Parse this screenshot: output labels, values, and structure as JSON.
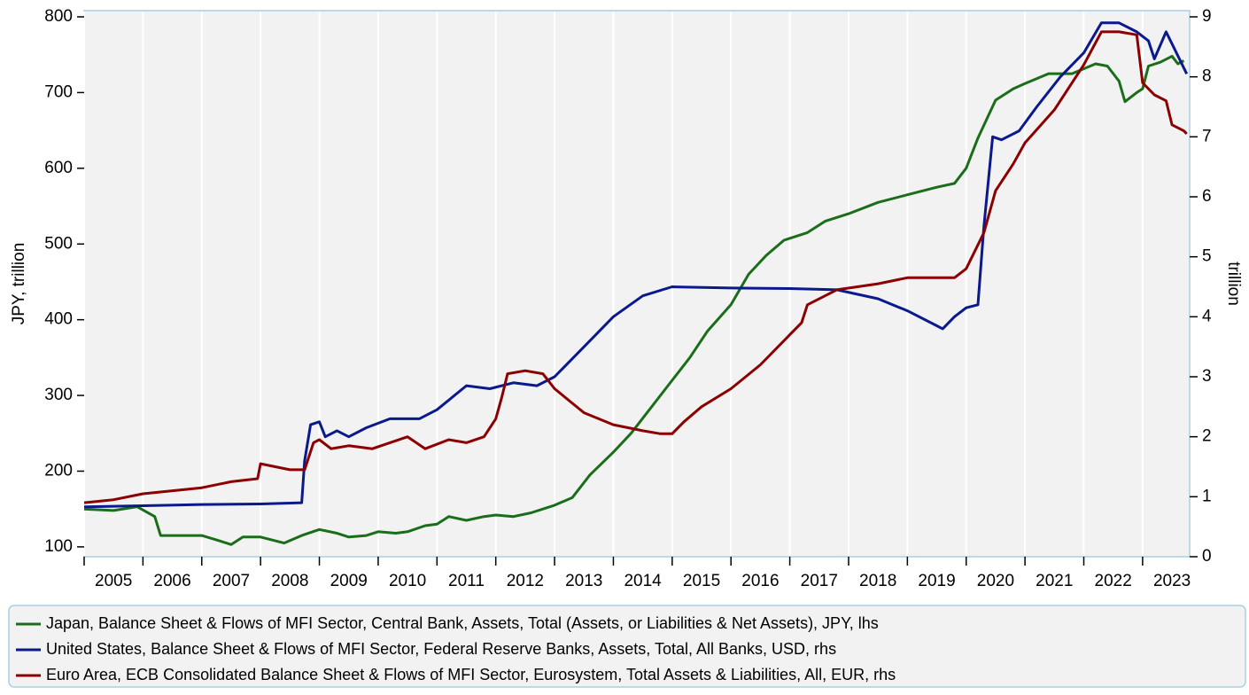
{
  "chart_data": {
    "type": "line",
    "ylabel": "JPY, trillion",
    "y2label": "trillion",
    "xlim": [
      2005,
      2023.8
    ],
    "xticks": [
      {
        "value": 2005,
        "label": "2005"
      },
      {
        "value": 2006,
        "label": "2006"
      },
      {
        "value": 2007,
        "label": "2007"
      },
      {
        "value": 2008,
        "label": "2008"
      },
      {
        "value": 2009,
        "label": "2009"
      },
      {
        "value": 2010,
        "label": "2010"
      },
      {
        "value": 2011,
        "label": "2011"
      },
      {
        "value": 2012,
        "label": "2012"
      },
      {
        "value": 2013,
        "label": "2013"
      },
      {
        "value": 2014,
        "label": "2014"
      },
      {
        "value": 2015,
        "label": "2015"
      },
      {
        "value": 2016,
        "label": "2016"
      },
      {
        "value": 2017,
        "label": "2017"
      },
      {
        "value": 2018,
        "label": "2018"
      },
      {
        "value": 2019,
        "label": "2019"
      },
      {
        "value": 2020,
        "label": "2020"
      },
      {
        "value": 2021,
        "label": "2021"
      },
      {
        "value": 2022,
        "label": "2022"
      },
      {
        "value": 2023,
        "label": "2023"
      }
    ],
    "ylim": [
      87,
      800
    ],
    "yticks": [
      100,
      200,
      300,
      400,
      500,
      600,
      700,
      800
    ],
    "y2lim": [
      0,
      9
    ],
    "y2ticks": [
      0,
      1,
      2,
      3,
      4,
      5,
      6,
      7,
      8,
      9
    ],
    "grid": true,
    "series": [
      {
        "name": "Japan, Balance Sheet & Flows of MFI Sector, Central Bank, Assets, Total (Assets, or Liabilities & Net Assets), JPY, lhs",
        "color": "#1a6e1a",
        "axis": "y",
        "x": [
          2005.0,
          2005.5,
          2005.9,
          2006.2,
          2006.3,
          2006.8,
          2007.0,
          2007.3,
          2007.5,
          2007.7,
          2008.0,
          2008.4,
          2008.7,
          2009.0,
          2009.3,
          2009.5,
          2009.8,
          2010.0,
          2010.3,
          2010.5,
          2010.8,
          2011.0,
          2011.2,
          2011.5,
          2011.8,
          2012.0,
          2012.3,
          2012.6,
          2013.0,
          2013.3,
          2013.6,
          2014.0,
          2014.3,
          2014.6,
          2015.0,
          2015.3,
          2015.6,
          2016.0,
          2016.3,
          2016.6,
          2016.9,
          2017.3,
          2017.6,
          2018.0,
          2018.5,
          2019.0,
          2019.5,
          2019.8,
          2020.0,
          2020.2,
          2020.5,
          2020.8,
          2021.0,
          2021.4,
          2021.8,
          2022.2,
          2022.4,
          2022.6,
          2022.7,
          2022.9,
          2023.0,
          2023.1,
          2023.3,
          2023.5,
          2023.6,
          2023.7
        ],
        "values": [
          150,
          148,
          153,
          140,
          115,
          115,
          115,
          108,
          103,
          113,
          113,
          105,
          115,
          123,
          118,
          113,
          115,
          120,
          118,
          120,
          128,
          130,
          140,
          135,
          140,
          142,
          140,
          145,
          155,
          165,
          195,
          225,
          250,
          280,
          320,
          350,
          385,
          420,
          460,
          485,
          505,
          515,
          530,
          540,
          555,
          565,
          575,
          580,
          600,
          640,
          690,
          705,
          712,
          725,
          725,
          738,
          735,
          715,
          688,
          700,
          705,
          735,
          740,
          748,
          738,
          742
        ]
      },
      {
        "name": "United States, Balance Sheet & Flows of MFI Sector, Federal Reserve Banks, Assets, Total, All Banks, USD, rhs",
        "color": "#0a1a8c",
        "axis": "y2",
        "x": [
          2005.0,
          2006.0,
          2007.0,
          2008.0,
          2008.7,
          2008.75,
          2008.85,
          2009.0,
          2009.1,
          2009.3,
          2009.5,
          2009.8,
          2010.2,
          2010.7,
          2011.0,
          2011.5,
          2011.9,
          2012.3,
          2012.7,
          2013.0,
          2013.5,
          2014.0,
          2014.5,
          2015.0,
          2016.0,
          2017.0,
          2017.8,
          2018.5,
          2019.0,
          2019.5,
          2019.6,
          2019.8,
          2020.0,
          2020.2,
          2020.3,
          2020.45,
          2020.6,
          2020.9,
          2021.2,
          2021.6,
          2022.0,
          2022.3,
          2022.6,
          2022.9,
          2023.1,
          2023.2,
          2023.4,
          2023.5,
          2023.75
        ],
        "values": [
          0.83,
          0.85,
          0.87,
          0.88,
          0.9,
          1.6,
          2.2,
          2.25,
          2.0,
          2.1,
          2.0,
          2.15,
          2.3,
          2.3,
          2.45,
          2.85,
          2.8,
          2.9,
          2.85,
          3.0,
          3.5,
          4.0,
          4.35,
          4.5,
          4.48,
          4.47,
          4.45,
          4.3,
          4.1,
          3.85,
          3.8,
          4.0,
          4.15,
          4.2,
          5.5,
          7.0,
          6.95,
          7.1,
          7.5,
          8.0,
          8.4,
          8.9,
          8.9,
          8.75,
          8.6,
          8.3,
          8.75,
          8.55,
          8.05
        ]
      },
      {
        "name": "Euro Area, ECB Consolidated Balance Sheet & Flows of MFI Sector, Eurosystem, Total Assets & Liabilities, All, EUR, rhs",
        "color": "#8b0000",
        "axis": "y2",
        "x": [
          2005.0,
          2005.5,
          2006.0,
          2006.5,
          2007.0,
          2007.5,
          2007.95,
          2008.0,
          2008.5,
          2008.75,
          2008.9,
          2009.0,
          2009.2,
          2009.5,
          2009.9,
          2010.2,
          2010.5,
          2010.8,
          2011.2,
          2011.5,
          2011.8,
          2012.0,
          2012.1,
          2012.2,
          2012.5,
          2012.8,
          2013.0,
          2013.5,
          2014.0,
          2014.5,
          2014.8,
          2015.0,
          2015.2,
          2015.5,
          2016.0,
          2016.5,
          2017.0,
          2017.2,
          2017.3,
          2017.8,
          2018.5,
          2019.0,
          2019.5,
          2019.8,
          2020.0,
          2020.3,
          2020.5,
          2020.8,
          2021.0,
          2021.5,
          2022.0,
          2022.3,
          2022.6,
          2022.9,
          2023.0,
          2023.2,
          2023.4,
          2023.5,
          2023.7,
          2023.75
        ],
        "values": [
          0.9,
          0.95,
          1.05,
          1.1,
          1.15,
          1.25,
          1.3,
          1.55,
          1.45,
          1.45,
          1.9,
          1.95,
          1.8,
          1.85,
          1.8,
          1.9,
          2.0,
          1.8,
          1.95,
          1.9,
          2.0,
          2.3,
          2.65,
          3.05,
          3.1,
          3.05,
          2.8,
          2.4,
          2.2,
          2.1,
          2.05,
          2.05,
          2.25,
          2.5,
          2.8,
          3.2,
          3.7,
          3.9,
          4.2,
          4.45,
          4.55,
          4.65,
          4.65,
          4.65,
          4.8,
          5.4,
          6.1,
          6.55,
          6.9,
          7.45,
          8.2,
          8.75,
          8.75,
          8.7,
          7.9,
          7.7,
          7.6,
          7.2,
          7.1,
          7.05
        ]
      }
    ]
  }
}
